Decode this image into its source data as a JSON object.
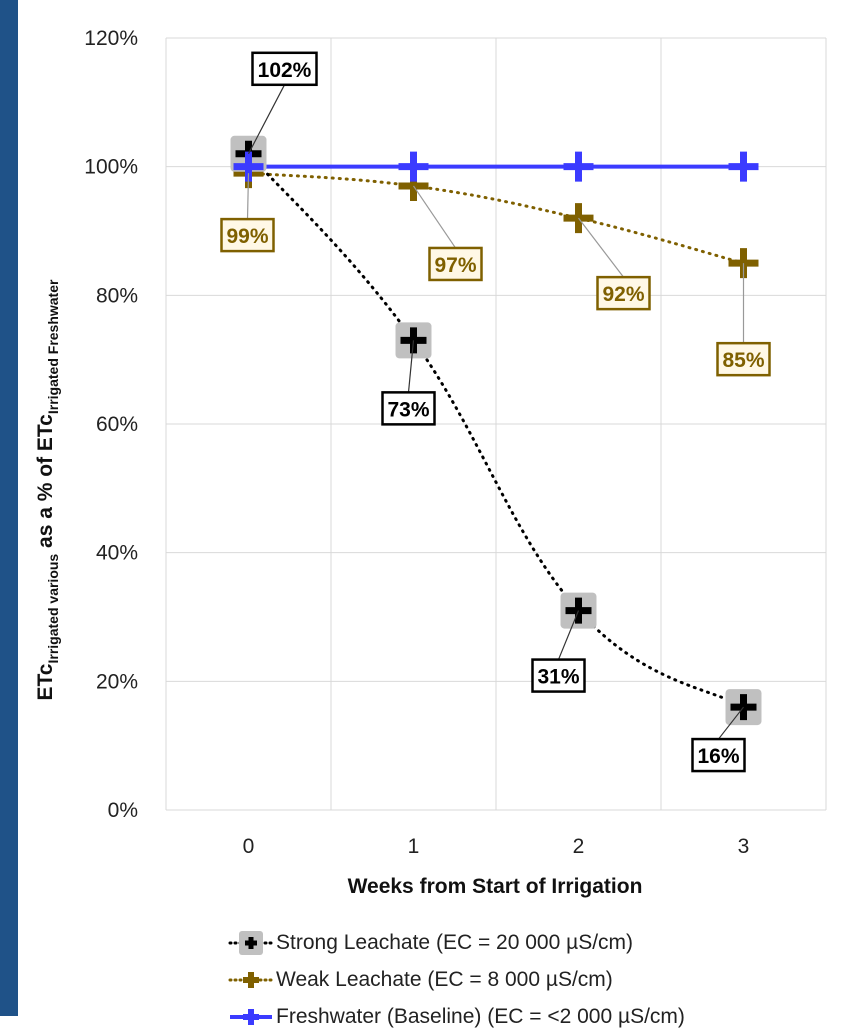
{
  "chart_data": {
    "type": "line",
    "title": "",
    "xlabel": "Weeks from Start of Irrigation",
    "ylabel": {
      "main1": "ETc",
      "sub1": "Irrigated various",
      "main2": " as a % of ETc",
      "sub2": "Irrigated Freshwater"
    },
    "x": [
      0,
      1,
      2,
      3
    ],
    "x_tick_labels": [
      "0",
      "1",
      "2",
      "3"
    ],
    "xlim": [
      -0.5,
      3.5
    ],
    "ylim": [
      0,
      120
    ],
    "y_ticks": [
      0,
      20,
      40,
      60,
      80,
      100,
      120
    ],
    "y_tick_labels": [
      "0%",
      "20%",
      "40%",
      "60%",
      "80%",
      "100%",
      "120%"
    ],
    "grid": true,
    "legend_position": "bottom",
    "series": [
      {
        "name": "Strong Leachate (EC = 20 000 µS/cm)",
        "values": [
          102,
          73,
          31,
          16
        ],
        "data_labels": [
          "102%",
          "73%",
          "31%",
          "16%"
        ],
        "color": "#000000",
        "line_style": "dotted"
      },
      {
        "name": "Weak Leachate (EC = 8 000 µS/cm)",
        "values": [
          99,
          97,
          92,
          85
        ],
        "data_labels": [
          "99%",
          "97%",
          "92%",
          "85%"
        ],
        "color": "#7f6000",
        "line_style": "dotted"
      },
      {
        "name": "Freshwater (Baseline) (EC = <2 000 µS/cm)",
        "values": [
          100,
          100,
          100,
          100
        ],
        "data_labels": [],
        "color": "#3b3bff",
        "line_style": "solid"
      }
    ]
  }
}
